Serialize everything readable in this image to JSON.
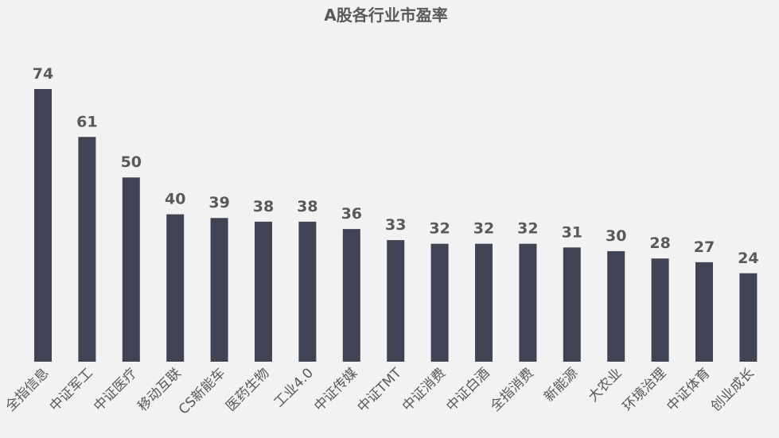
{
  "chart_data": {
    "type": "bar",
    "title": "A股各行业市盈率",
    "xlabel": "",
    "ylabel": "",
    "categories": [
      "全指信息",
      "中证军工",
      "中证医疗",
      "移动互联",
      "CS新能车",
      "医药生物",
      "工业4.0",
      "中证传媒",
      "中证TMT",
      "中证消费",
      "中证白酒",
      "全指消费",
      "新能源",
      "大农业",
      "环境治理",
      "中证体育",
      "创业成长"
    ],
    "values": [
      74,
      61,
      50,
      40,
      39,
      38,
      38,
      36,
      33,
      32,
      32,
      32,
      31,
      30,
      28,
      27,
      24
    ],
    "ylim": [
      0,
      74
    ],
    "grid": false,
    "legend": "none",
    "bar_color": "#404354"
  }
}
